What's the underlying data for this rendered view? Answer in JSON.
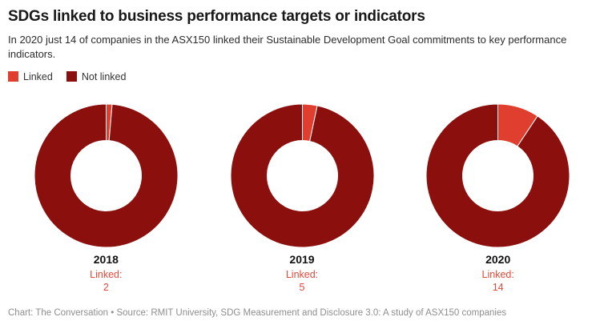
{
  "header": {
    "title": "SDGs linked to business performance targets or indicators",
    "subtitle": "In 2020 just 14 of companies in the ASX150 linked their Sustainable Development Goal commitments to key performance indicators."
  },
  "legend": {
    "items": [
      {
        "label": "Linked",
        "color": "#e03e2e"
      },
      {
        "label": "Not linked",
        "color": "#8b0f0c"
      }
    ]
  },
  "chart_data": {
    "type": "pie",
    "subtype": "donut",
    "total": 150,
    "series_labels": [
      "Linked",
      "Not linked"
    ],
    "colors": {
      "linked": "#e03e2e",
      "not_linked": "#8b0f0c"
    },
    "start_angle_deg": 0,
    "direction": "clockwise",
    "charts": [
      {
        "year": "2018",
        "linked": 2,
        "not_linked": 148,
        "linked_label": "Linked:"
      },
      {
        "year": "2019",
        "linked": 5,
        "not_linked": 145,
        "linked_label": "Linked:"
      },
      {
        "year": "2020",
        "linked": 14,
        "not_linked": 136,
        "linked_label": "Linked:"
      }
    ]
  },
  "footer": {
    "credit": "Chart: The Conversation • Source: RMIT University, SDG Measurement and Disclosure 3.0: A study of ASX150 companies"
  }
}
